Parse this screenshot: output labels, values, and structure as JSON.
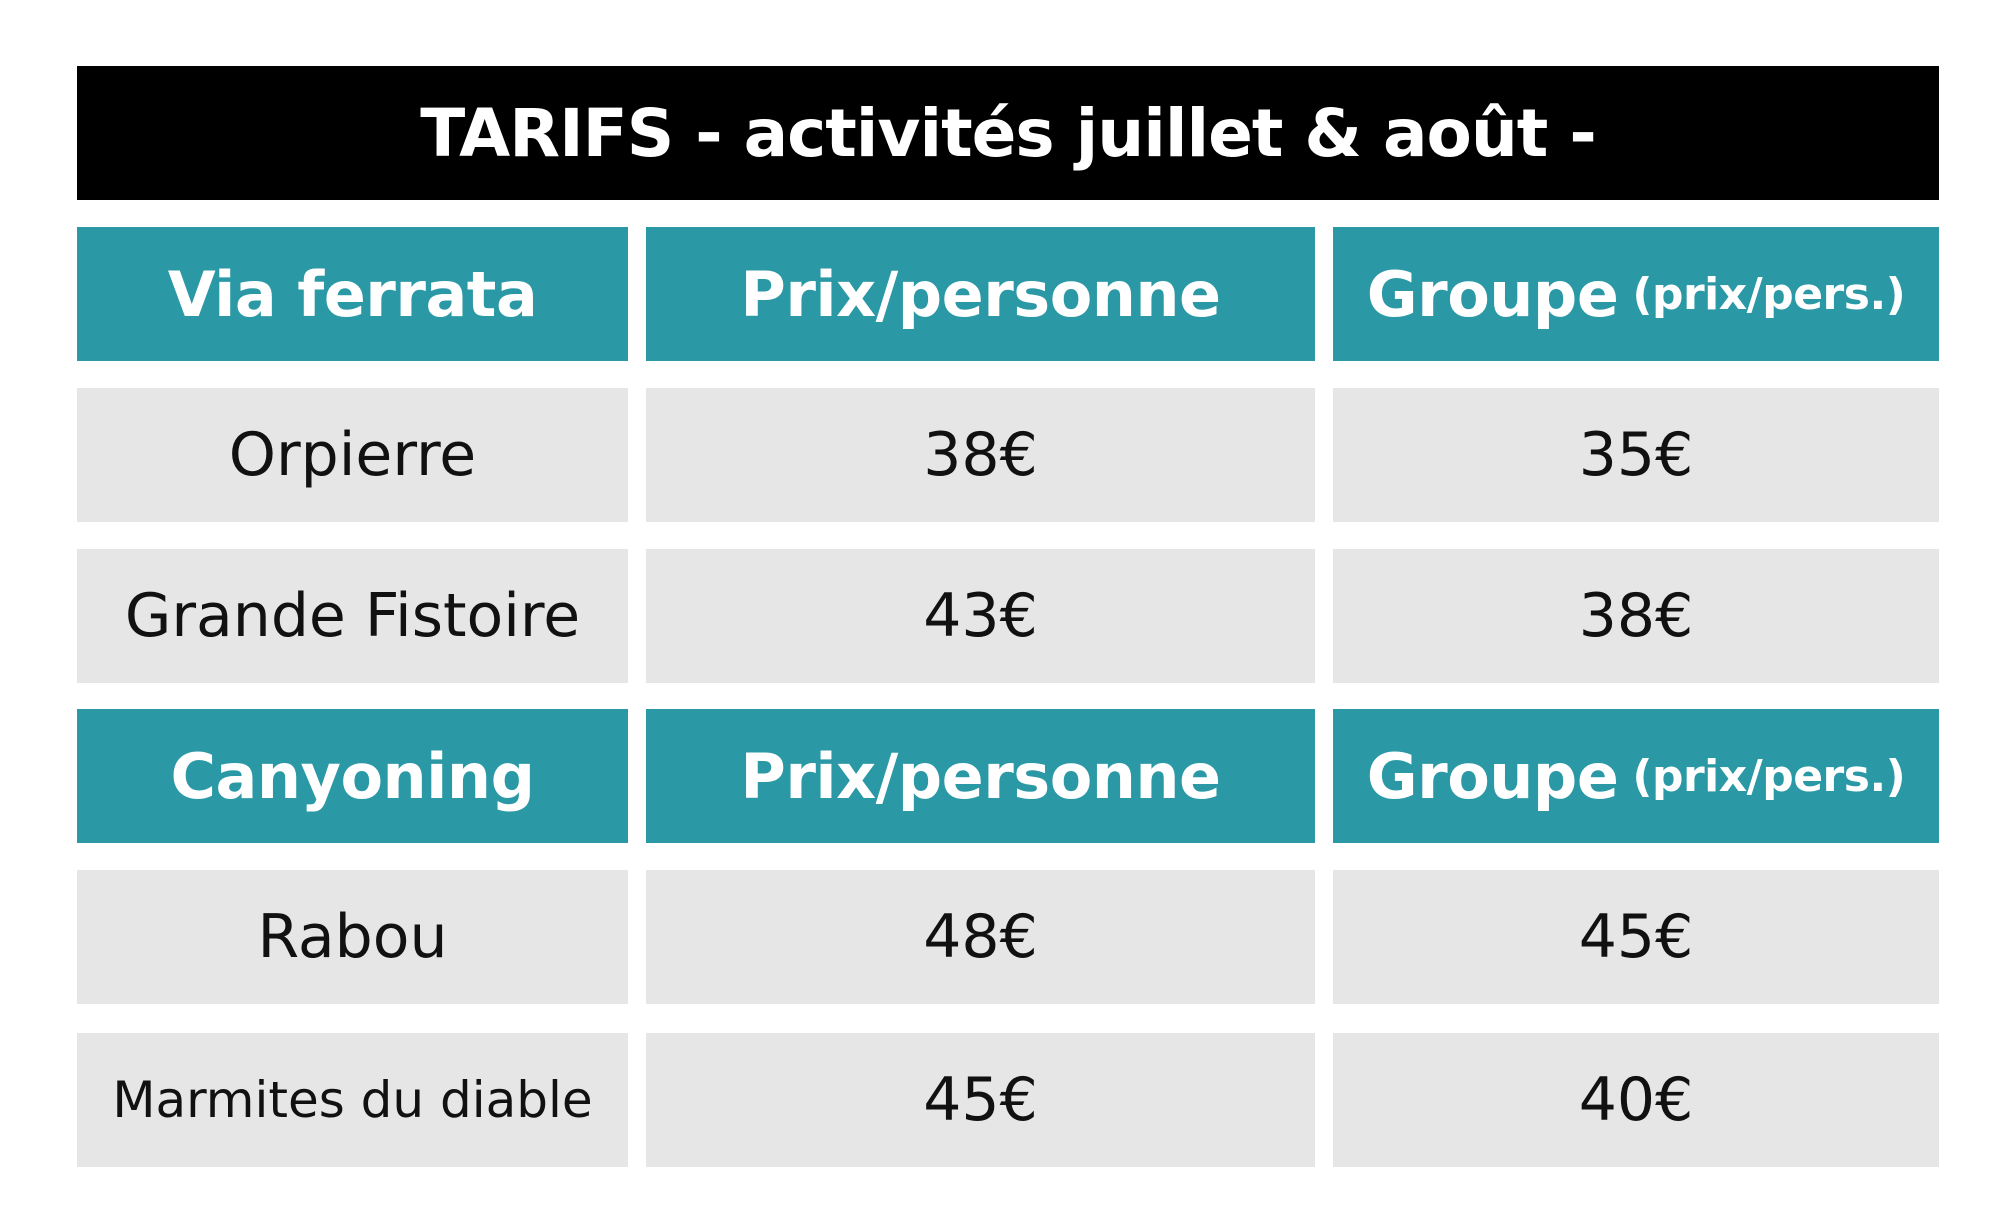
{
  "title": "TARIFS - activités juillet & août -",
  "sections": [
    {
      "header": {
        "activity": "Via ferrata",
        "price": "Prix/personne",
        "group_main": "Groupe",
        "group_sub": "(prix/pers.)"
      },
      "rows": [
        {
          "name": "Orpierre",
          "price": "38€",
          "group": "35€"
        },
        {
          "name": "Grande Fistoire",
          "price": "43€",
          "group": "38€"
        }
      ]
    },
    {
      "header": {
        "activity": "Canyoning",
        "price": "Prix/personne",
        "group_main": "Groupe",
        "group_sub": "(prix/pers.)"
      },
      "rows": [
        {
          "name": "Rabou",
          "price": "48€",
          "group": "45€"
        },
        {
          "name": "Marmites du diable",
          "price": "45€",
          "group": "40€"
        }
      ]
    }
  ],
  "colors": {
    "title_bg": "#000000",
    "header_bg": "#2a98a5",
    "row_bg": "#e6e6e6"
  }
}
